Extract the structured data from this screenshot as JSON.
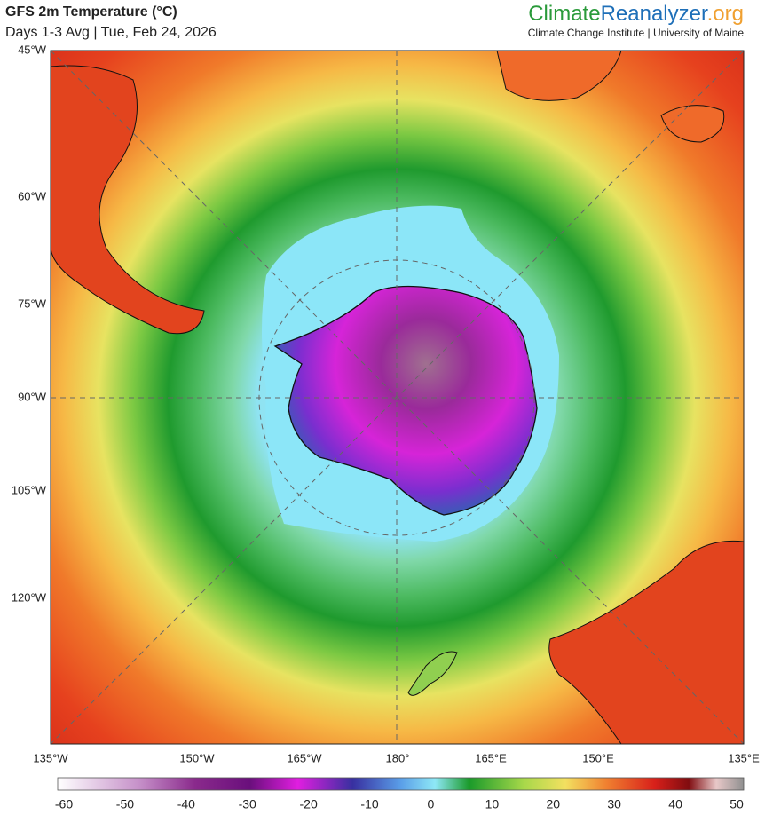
{
  "header": {
    "title": "GFS 2m Temperature (°C)",
    "subtitle": "Days 1-3 Avg | Tue, Feb 24, 2026",
    "brand": [
      "Climate",
      "Reanalyzer",
      ".org"
    ],
    "institute": "Climate Change Institute | University of Maine"
  },
  "map": {
    "left_labels": [
      "45°W",
      "60°W",
      "75°W",
      "90°W",
      "105°W",
      "120°W"
    ],
    "bottom_labels": [
      "135°W",
      "150°W",
      "165°W",
      "180°",
      "165°E",
      "150°E",
      "135°E"
    ]
  },
  "colorbar": {
    "ticks": [
      -60,
      -50,
      -40,
      -30,
      -20,
      -10,
      0,
      10,
      20,
      30,
      40,
      50
    ]
  }
}
